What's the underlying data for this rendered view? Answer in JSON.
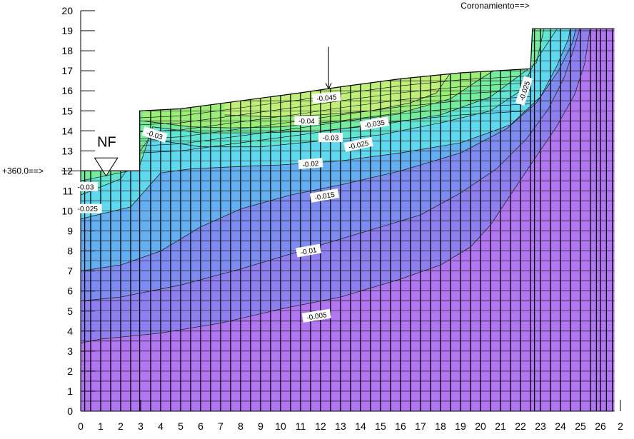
{
  "chart_data": {
    "type": "heatmap",
    "title": "",
    "xlabel": "",
    "ylabel": "",
    "xlim": [
      0,
      26.7
    ],
    "ylim": [
      0,
      20
    ],
    "x_ticks": [
      "0",
      "1",
      "2",
      "3",
      "4",
      "5",
      "6",
      "7",
      "8",
      "9",
      "10",
      "11",
      "12",
      "13",
      "14",
      "15",
      "16",
      "17",
      "18",
      "19",
      "20",
      "21",
      "22",
      "23",
      "24",
      "25",
      "26",
      "2"
    ],
    "y_ticks": [
      "0",
      "1",
      "2",
      "3",
      "4",
      "5",
      "6",
      "7",
      "8",
      "9",
      "10",
      "11",
      "12",
      "13",
      "14",
      "15",
      "16",
      "17",
      "18",
      "19",
      "20"
    ],
    "ground_profile": [
      [
        0,
        12
      ],
      [
        2.95,
        12
      ],
      [
        2.95,
        15
      ],
      [
        5,
        15.1
      ],
      [
        8,
        15.5
      ],
      [
        11,
        15.9
      ],
      [
        13,
        16.2
      ],
      [
        16,
        16.6
      ],
      [
        19,
        16.9
      ],
      [
        22.5,
        17.1
      ],
      [
        22.6,
        19.1
      ],
      [
        26.7,
        19.1
      ]
    ],
    "contour_levels": [
      {
        "level": -0.005,
        "label": "-0.005",
        "label_pos": [
          11.8,
          4.75
        ],
        "label_angle": -9
      },
      {
        "level": -0.01,
        "label": "-0.01",
        "label_pos": [
          11.4,
          8.0
        ],
        "label_angle": -10
      },
      {
        "level": -0.015,
        "label": "-0.015",
        "label_pos": [
          12.2,
          10.75
        ],
        "label_angle": -10
      },
      {
        "level": -0.02,
        "label": "-0.02",
        "label_pos": [
          11.5,
          12.35
        ],
        "label_angle": -5
      },
      {
        "level": -0.025,
        "label": "-0.025",
        "label_pos": [
          13.9,
          13.3
        ],
        "label_angle": -12
      },
      {
        "level": -0.025,
        "label": "-0.025",
        "label_pos": [
          22.2,
          16.0
        ],
        "label_angle": -72
      },
      {
        "level": -0.025,
        "label": "-0.025",
        "label_pos": [
          0.35,
          10.1
        ],
        "label_angle": 0
      },
      {
        "level": -0.03,
        "label": "-0.03",
        "label_pos": [
          3.7,
          13.8
        ],
        "label_angle": 18
      },
      {
        "level": -0.03,
        "label": "-0.03",
        "label_pos": [
          12.5,
          13.65
        ],
        "label_angle": 0
      },
      {
        "level": -0.03,
        "label": "-0.03",
        "label_pos": [
          0.25,
          11.2
        ],
        "label_angle": 0
      },
      {
        "level": -0.035,
        "label": "-0.035",
        "label_pos": [
          14.7,
          14.35
        ],
        "label_angle": -10
      },
      {
        "level": -0.04,
        "label": "-0.04",
        "label_pos": [
          11.3,
          14.5
        ],
        "label_angle": 0
      },
      {
        "level": -0.045,
        "label": "-0.045",
        "label_pos": [
          12.3,
          15.65
        ],
        "label_angle": -5
      }
    ],
    "colors": {
      "v005": "#b176f1",
      "v010": "#8f7ff0",
      "v015": "#7e8cf2",
      "v020": "#64aef2",
      "v025": "#5fd9ee",
      "v030": "#5fe7d3",
      "v035": "#74ec9d",
      "v040": "#9bef79",
      "v045": "#c0f07a"
    },
    "annotations": {
      "water_table": "NF",
      "level_label": "+360.0==>",
      "crest_label": "Coronamiento==>"
    }
  }
}
